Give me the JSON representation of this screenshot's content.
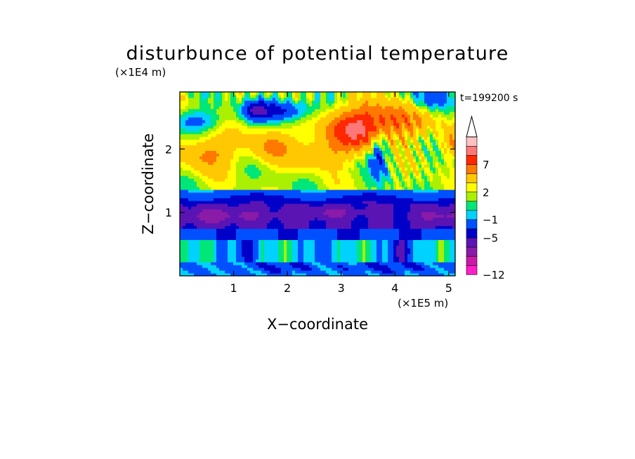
{
  "chart_data": {
    "type": "heatmap",
    "title": "disturbunce of potential temperature",
    "xlabel": "X−coordinate",
    "ylabel": "Z−coordinate",
    "x_unit": "(×1E5 m)",
    "y_unit": "(×1E4 m)",
    "time_label": "t=199200 s",
    "xlim": [
      0,
      5.12
    ],
    "ylim": [
      0,
      2.9
    ],
    "x_ticks": [
      1,
      2,
      3,
      4,
      5
    ],
    "y_ticks": [
      1,
      2
    ],
    "colorbar": {
      "levels": [
        -12,
        -11,
        -9,
        -7,
        -5,
        -3,
        -1,
        0,
        1,
        2,
        3,
        5,
        7,
        9,
        11
      ],
      "colors": [
        "#ff1ec8",
        "#cc1aa8",
        "#8a1aa8",
        "#5a14b4",
        "#0000c8",
        "#0050ff",
        "#00d2ff",
        "#00e678",
        "#aaf000",
        "#ffff00",
        "#ffc800",
        "#ff7800",
        "#ff2800",
        "#ff7878",
        "#ffc0c0"
      ],
      "tick_labels": [
        "7",
        "2",
        "−1",
        "−5",
        "−12"
      ],
      "tick_values": [
        7,
        2,
        -1,
        -5,
        -12
      ],
      "extend": "max"
    }
  }
}
